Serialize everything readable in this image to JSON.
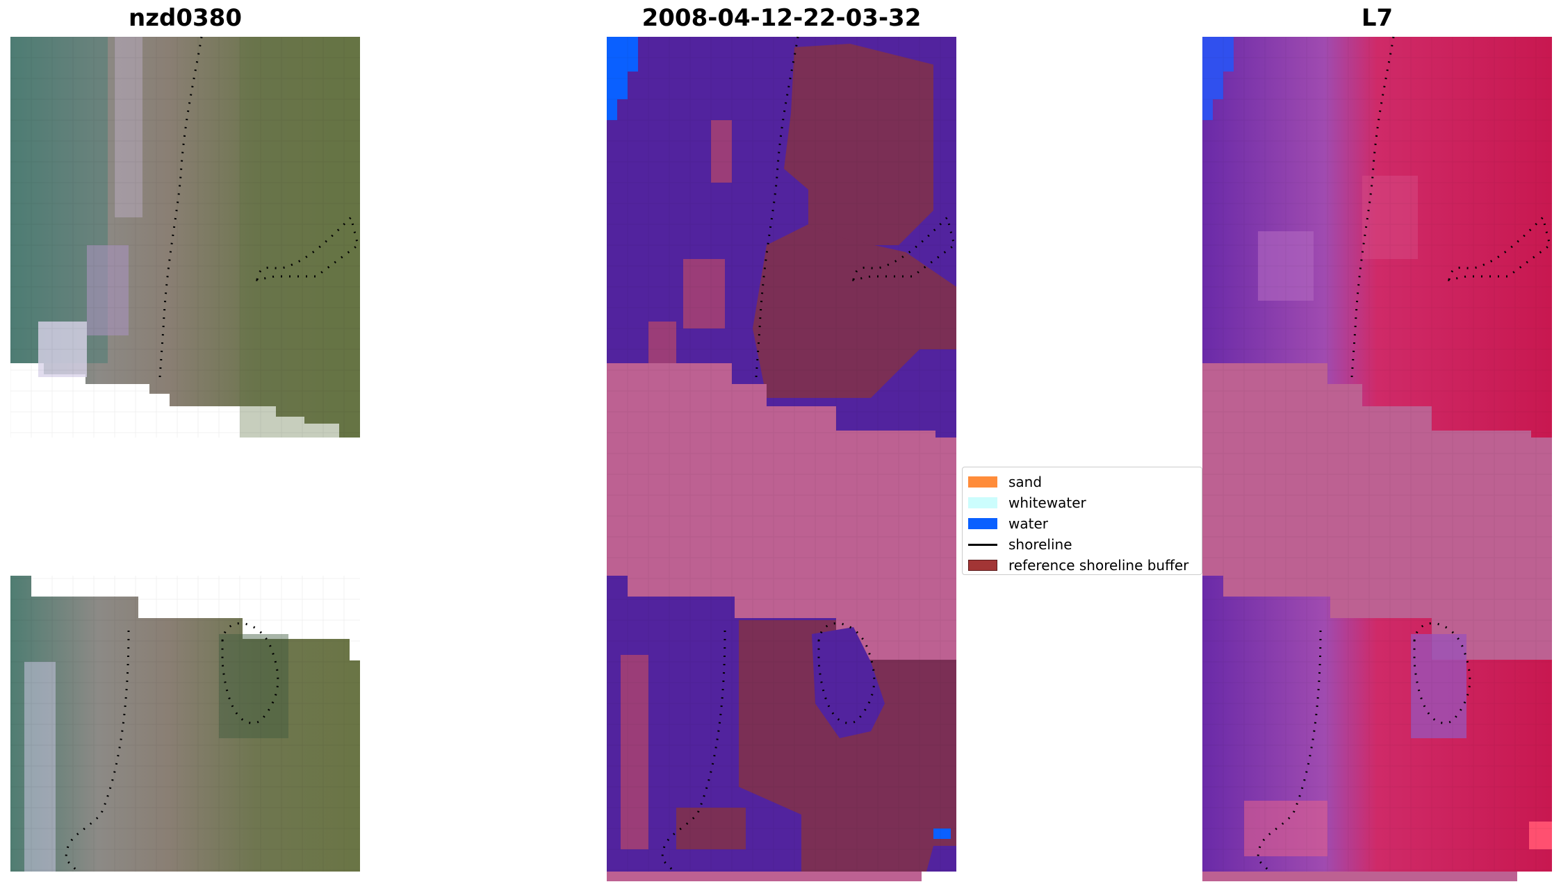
{
  "panels": [
    {
      "title": "nzd0380"
    },
    {
      "title": "2008-04-12-22-03-32"
    },
    {
      "title": "L7"
    }
  ],
  "legend": {
    "items": [
      {
        "label": "sand",
        "color": "#ff8c3a",
        "kind": "patch"
      },
      {
        "label": "whitewater",
        "color": "#ccfdfd",
        "kind": "patch"
      },
      {
        "label": "water",
        "color": "#0a60ff",
        "kind": "patch"
      },
      {
        "label": "shoreline",
        "color": "#000000",
        "kind": "line"
      },
      {
        "label": "reference shoreline buffer",
        "color": "#a23535",
        "kind": "patch"
      }
    ]
  },
  "colors": {
    "classified_background": "#52239e",
    "classified_land": "#7b2f55",
    "nodata_band": "#bd6192",
    "water": "#0a60ff",
    "index_purple": "#8a3ab8",
    "index_red": "#cf1450"
  }
}
